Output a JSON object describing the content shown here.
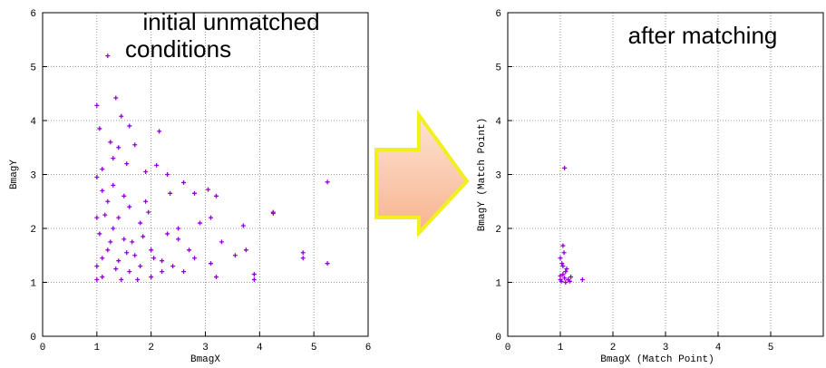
{
  "chart_data": [
    {
      "type": "scatter",
      "xlabel": "BmagX",
      "ylabel": "BmagY",
      "annotation_lines": [
        "initial unmatched",
        "conditions"
      ],
      "color": "#9400d3",
      "grid": true,
      "xlim": [
        0,
        6
      ],
      "ylim": [
        0,
        6
      ],
      "xticks": [
        0,
        1,
        2,
        3,
        4,
        5,
        6
      ],
      "yticks": [
        0,
        1,
        2,
        3,
        4,
        5,
        6
      ],
      "x": [
        1.2,
        1.0,
        1.35,
        1.45,
        1.05,
        1.6,
        1.25,
        1.4,
        1.7,
        2.15,
        1.3,
        1.55,
        1.1,
        2.1,
        1.9,
        2.3,
        1.0,
        2.6,
        3.05,
        5.25,
        2.8,
        3.2,
        4.25,
        4.25,
        3.1,
        2.9,
        3.7,
        2.5,
        2.3,
        3.3,
        3.75,
        3.55,
        2.7,
        2.5,
        4.8,
        4.8,
        5.25,
        3.1,
        3.2,
        3.9,
        3.9,
        2.6,
        2.2,
        2.0,
        1.8,
        1.6,
        1.4,
        1.2,
        1.1,
        1.3,
        1.5,
        1.7,
        1.0,
        1.1,
        1.2,
        1.4,
        1.6,
        1.8,
        2.0,
        2.2,
        1.05,
        1.25,
        1.45,
        1.65,
        1.85,
        2.05,
        1.0,
        1.15,
        1.35,
        1.55,
        1.75,
        1.95,
        2.4,
        2.8,
        1.0,
        1.3,
        1.5,
        1.9,
        2.35,
        1.1
      ],
      "values": [
        5.2,
        4.28,
        4.42,
        4.08,
        3.85,
        3.9,
        3.6,
        3.5,
        3.55,
        3.8,
        3.3,
        3.2,
        3.1,
        3.17,
        3.05,
        3.0,
        2.95,
        2.85,
        2.72,
        2.86,
        2.65,
        2.6,
        2.3,
        2.28,
        2.2,
        2.1,
        2.05,
        2.0,
        1.9,
        1.75,
        1.6,
        1.5,
        1.6,
        1.8,
        1.55,
        1.45,
        1.35,
        1.35,
        1.1,
        1.15,
        1.05,
        1.2,
        1.4,
        1.6,
        2.1,
        2.4,
        2.2,
        2.5,
        2.7,
        2.0,
        1.8,
        1.5,
        1.3,
        1.1,
        1.6,
        1.4,
        1.2,
        1.3,
        1.1,
        1.2,
        1.9,
        1.75,
        1.05,
        1.75,
        1.85,
        1.45,
        1.05,
        2.25,
        1.25,
        1.55,
        1.05,
        2.3,
        1.3,
        1.45,
        2.2,
        2.8,
        2.6,
        2.5,
        2.65,
        1.45
      ]
    },
    {
      "type": "scatter",
      "xlabel": "BmagX (Match Point)",
      "ylabel": "BmagY (Match Point)",
      "annotation_lines": [
        "after matching"
      ],
      "color": "#9400d3",
      "grid": true,
      "xlim": [
        0,
        6
      ],
      "ylim": [
        0,
        6
      ],
      "xticks": [
        0,
        1,
        2,
        3,
        4,
        5
      ],
      "yticks": [
        0,
        1,
        2,
        3,
        4,
        5,
        6
      ],
      "x": [
        1.08,
        1.05,
        1.0,
        1.05,
        1.1,
        1.0,
        1.02,
        1.08,
        1.15,
        1.2,
        1.42,
        1.05,
        1.12,
        1.0,
        1.18,
        1.1,
        1.03,
        1.07
      ],
      "values": [
        3.12,
        1.68,
        1.45,
        1.3,
        1.2,
        1.05,
        1.02,
        1.08,
        1.05,
        1.1,
        1.05,
        1.15,
        1.25,
        1.12,
        1.02,
        1.0,
        1.35,
        1.55
      ]
    }
  ]
}
